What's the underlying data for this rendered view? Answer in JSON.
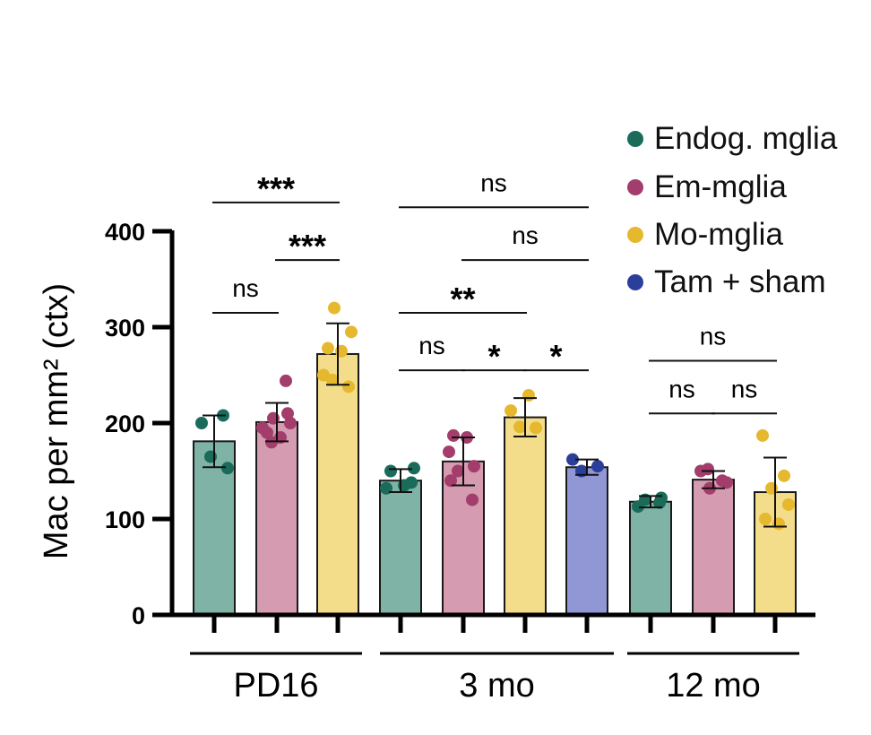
{
  "chart_data": {
    "type": "bar",
    "ylabel": "Mac per mm² (ctx)",
    "ylim": [
      0,
      400
    ],
    "yticks": [
      "0",
      "100",
      "200",
      "300",
      "400"
    ],
    "group_labels": [
      "PD16",
      "3 mo",
      "12 mo"
    ],
    "legend": [
      {
        "label": "Endog. mglia",
        "color": "#1a6b5a"
      },
      {
        "label": "Em-mglia",
        "color": "#a33d6b"
      },
      {
        "label": "Mo-mglia",
        "color": "#e6b82e"
      },
      {
        "label": "Tam + sham",
        "color": "#2b3f9a"
      }
    ],
    "bars": [
      {
        "group": 0,
        "series": 0,
        "mean": 181,
        "sd": 27,
        "points": [
          200,
          208,
          165,
          153
        ]
      },
      {
        "group": 0,
        "series": 1,
        "mean": 201,
        "sd": 20,
        "points": [
          244,
          205,
          200,
          190,
          185,
          195,
          210,
          180
        ]
      },
      {
        "group": 0,
        "series": 2,
        "mean": 272,
        "sd": 32,
        "points": [
          320,
          295,
          278,
          275,
          250,
          238,
          245
        ]
      },
      {
        "group": 1,
        "series": 0,
        "mean": 140,
        "sd": 12,
        "points": [
          153,
          150,
          135,
          132,
          138
        ]
      },
      {
        "group": 1,
        "series": 1,
        "mean": 160,
        "sd": 25,
        "points": [
          187,
          185,
          170,
          155,
          150,
          140,
          120
        ]
      },
      {
        "group": 1,
        "series": 2,
        "mean": 206,
        "sd": 20,
        "points": [
          229,
          213,
          195,
          196
        ]
      },
      {
        "group": 1,
        "series": 3,
        "mean": 154,
        "sd": 8,
        "points": [
          162,
          155,
          150
        ]
      },
      {
        "group": 2,
        "series": 0,
        "mean": 118,
        "sd": 6,
        "points": [
          122,
          120,
          113,
          117
        ]
      },
      {
        "group": 2,
        "series": 1,
        "mean": 141,
        "sd": 9,
        "points": [
          152,
          150,
          140,
          132,
          138
        ]
      },
      {
        "group": 2,
        "series": 2,
        "mean": 128,
        "sd": 36,
        "points": [
          187,
          145,
          132,
          115,
          100,
          95
        ]
      }
    ],
    "significance": [
      {
        "label": "ns",
        "from": 0,
        "to": 1,
        "level": 315
      },
      {
        "label": "***",
        "from": 1,
        "to": 2,
        "level": 370
      },
      {
        "label": "***",
        "from": 0,
        "to": 2,
        "level": 430
      },
      {
        "label": "ns",
        "from": 3,
        "to": 4,
        "level": 255
      },
      {
        "label": "*",
        "from": 4,
        "to": 5,
        "level": 255
      },
      {
        "label": "*",
        "from": 5,
        "to": 6,
        "level": 255
      },
      {
        "label": "**",
        "from": 3,
        "to": 5,
        "level": 315
      },
      {
        "label": "ns",
        "from": 4,
        "to": 6,
        "level": 370
      },
      {
        "label": "ns",
        "from": 3,
        "to": 6,
        "level": 425
      },
      {
        "label": "ns",
        "from": 7,
        "to": 8,
        "level": 210
      },
      {
        "label": "ns",
        "from": 8,
        "to": 9,
        "level": 210
      },
      {
        "label": "ns",
        "from": 7,
        "to": 9,
        "level": 265
      }
    ]
  }
}
